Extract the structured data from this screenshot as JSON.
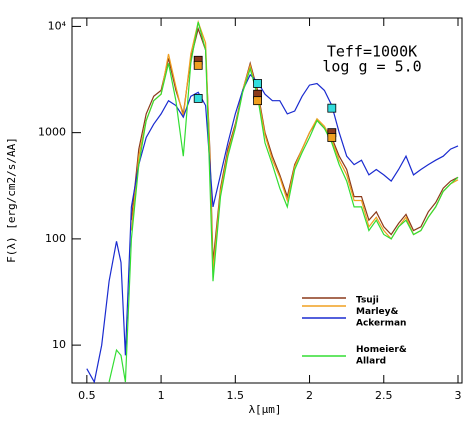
{
  "chart_data": {
    "type": "line",
    "xlabel": "λ[μm]",
    "ylabel": "F(λ) [erg/cm2/s/AA]",
    "annotations": [
      "Teff=1000K",
      "log g = 5.0"
    ],
    "log_y": true,
    "xlim": [
      0.4,
      3.0
    ],
    "xticks": [
      0.5,
      1,
      1.5,
      2,
      2.5,
      3
    ],
    "ylim": [
      4.4,
      12000
    ],
    "yticks": [
      10,
      100,
      1000,
      {
        "value": 10000,
        "label": "10⁴"
      }
    ],
    "series": [
      {
        "name": "Tsuji",
        "color": "#8b3a1a",
        "x": [
          0.8,
          0.85,
          0.9,
          0.95,
          1.0,
          1.05,
          1.1,
          1.15,
          1.2,
          1.25,
          1.3,
          1.33,
          1.35,
          1.4,
          1.45,
          1.5,
          1.55,
          1.6,
          1.65,
          1.7,
          1.75,
          1.8,
          1.85,
          1.9,
          1.95,
          2.0,
          2.05,
          2.1,
          2.15,
          2.2,
          2.25,
          2.3,
          2.35,
          2.4,
          2.45,
          2.5,
          2.55,
          2.6,
          2.65,
          2.7,
          2.75,
          2.8,
          2.85,
          2.9,
          2.95,
          3.0
        ],
        "values": [
          150,
          700,
          1500,
          2200,
          2500,
          5000,
          2500,
          1500,
          5000,
          9500,
          6000,
          600,
          60,
          300,
          700,
          1200,
          2500,
          4500,
          2500,
          1000,
          600,
          400,
          250,
          500,
          700,
          1000,
          1300,
          1100,
          900,
          600,
          450,
          250,
          250,
          150,
          180,
          130,
          110,
          140,
          170,
          120,
          130,
          180,
          220,
          300,
          350,
          380
        ]
      },
      {
        "color": "#f0a020",
        "x": [
          0.8,
          0.85,
          0.9,
          0.95,
          1.0,
          1.05,
          1.1,
          1.15,
          1.2,
          1.25,
          1.3,
          1.33,
          1.35,
          1.4,
          1.45,
          1.5,
          1.55,
          1.6,
          1.65,
          1.7,
          1.75,
          1.8,
          1.85,
          1.9,
          1.95,
          2.0,
          2.05,
          2.1,
          2.15,
          2.2,
          2.25,
          2.3,
          2.35,
          2.4,
          2.45,
          2.5,
          2.55,
          2.6,
          2.65,
          2.7,
          2.75,
          2.8,
          2.85,
          2.9,
          2.95,
          3.0
        ],
        "values": [
          120,
          600,
          1300,
          2000,
          2300,
          5500,
          2700,
          1400,
          5500,
          11000,
          7000,
          500,
          50,
          280,
          650,
          1150,
          2500,
          4300,
          2300,
          950,
          550,
          380,
          230,
          480,
          700,
          1000,
          1350,
          1150,
          850,
          550,
          400,
          230,
          230,
          130,
          160,
          120,
          100,
          130,
          160,
          110,
          120,
          160,
          200,
          280,
          330,
          360
        ]
      },
      {
        "name": "Marley&\nAckerman",
        "color": "#1a2bd0",
        "x": [
          0.5,
          0.55,
          0.6,
          0.65,
          0.7,
          0.73,
          0.76,
          0.8,
          0.85,
          0.9,
          0.95,
          1.0,
          1.05,
          1.1,
          1.15,
          1.2,
          1.25,
          1.3,
          1.35,
          1.4,
          1.45,
          1.5,
          1.55,
          1.6,
          1.65,
          1.7,
          1.75,
          1.8,
          1.85,
          1.9,
          1.95,
          2.0,
          2.05,
          2.1,
          2.15,
          2.2,
          2.25,
          2.3,
          2.35,
          2.4,
          2.45,
          2.5,
          2.55,
          2.6,
          2.65,
          2.7,
          2.75,
          2.8,
          2.85,
          2.9,
          2.95,
          3.0
        ],
        "values": [
          6,
          4.5,
          10,
          40,
          95,
          60,
          8,
          200,
          500,
          900,
          1200,
          1500,
          2000,
          1800,
          1400,
          2200,
          2400,
          1800,
          200,
          400,
          800,
          1500,
          2500,
          3500,
          3000,
          2300,
          2000,
          2000,
          1500,
          1600,
          2200,
          2800,
          2900,
          2500,
          1800,
          1000,
          600,
          500,
          550,
          400,
          450,
          400,
          350,
          450,
          600,
          400,
          450,
          500,
          550,
          600,
          700,
          750
        ]
      },
      {
        "name": "Homeier&\nAllard",
        "color": "#33dd33",
        "x": [
          0.65,
          0.7,
          0.73,
          0.76,
          0.8,
          0.85,
          0.9,
          0.95,
          1.0,
          1.05,
          1.1,
          1.15,
          1.2,
          1.25,
          1.3,
          1.33,
          1.35,
          1.4,
          1.45,
          1.5,
          1.55,
          1.6,
          1.65,
          1.7,
          1.75,
          1.8,
          1.85,
          1.9,
          1.95,
          2.0,
          2.05,
          2.1,
          2.15,
          2.2,
          2.25,
          2.3,
          2.35,
          2.4,
          2.45,
          2.5,
          2.55,
          2.6,
          2.65,
          2.7,
          2.75,
          2.8,
          2.85,
          2.9,
          2.95,
          3.0
        ],
        "values": [
          4.5,
          9,
          8,
          4.5,
          100,
          500,
          1300,
          2000,
          2300,
          4500,
          2000,
          600,
          4500,
          11000,
          6000,
          300,
          40,
          250,
          600,
          1100,
          2400,
          4000,
          2200,
          800,
          500,
          300,
          200,
          450,
          650,
          900,
          1300,
          1100,
          800,
          500,
          350,
          200,
          200,
          120,
          150,
          110,
          100,
          130,
          150,
          110,
          120,
          160,
          200,
          280,
          330,
          380
        ]
      },
      {
        "marker": "square",
        "color": "#8b3a1a",
        "x": [
          1.25,
          1.65,
          2.15
        ],
        "values": [
          4800,
          2300,
          1000
        ]
      },
      {
        "marker": "square",
        "color": "#f0a020",
        "x": [
          1.25,
          1.65,
          2.15
        ],
        "values": [
          4300,
          2000,
          900
        ]
      },
      {
        "marker": "square",
        "color": "#33dddd",
        "x": [
          1.25,
          1.65,
          2.15
        ],
        "values": [
          2100,
          2900,
          1700
        ]
      }
    ]
  }
}
